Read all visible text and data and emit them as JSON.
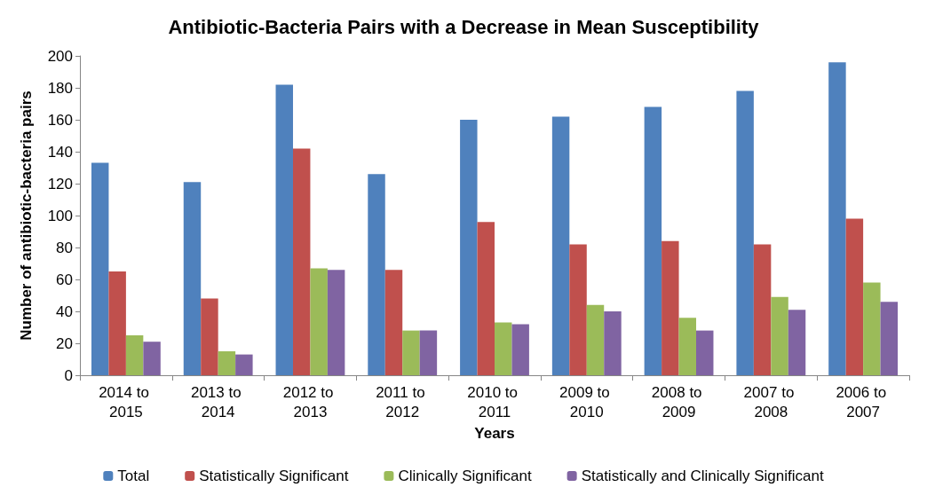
{
  "chart_data": {
    "type": "bar",
    "title": "Antibiotic-Bacteria Pairs with a Decrease in Mean Susceptibility",
    "xlabel": "Years",
    "ylabel": "Number of antibiotic-bacteria pairs",
    "categories": [
      "2014 to 2015",
      "2013 to 2014",
      "2012 to 2013",
      "2011 to 2012",
      "2010 to 2011",
      "2009 to 2010",
      "2008 to 2009",
      "2007 to 2008",
      "2006 to 2007"
    ],
    "series": [
      {
        "name": "Total",
        "color": "#4f81bd",
        "values": [
          133,
          121,
          182,
          126,
          160,
          162,
          168,
          178,
          196
        ]
      },
      {
        "name": "Statistically Significant",
        "color": "#c0504d",
        "values": [
          65,
          48,
          142,
          66,
          96,
          82,
          84,
          82,
          98
        ]
      },
      {
        "name": "Clinically Significant",
        "color": "#9bbb59",
        "values": [
          25,
          15,
          67,
          28,
          33,
          44,
          36,
          49,
          58
        ]
      },
      {
        "name": "Statistically and Clinically Significant",
        "color": "#8064a2",
        "values": [
          21,
          13,
          66,
          28,
          32,
          40,
          28,
          41,
          46
        ]
      }
    ],
    "ylim": [
      0,
      200
    ],
    "yticks": [
      0,
      20,
      40,
      60,
      80,
      100,
      120,
      140,
      160,
      180,
      200
    ],
    "grid": false,
    "legend": "bottom"
  }
}
